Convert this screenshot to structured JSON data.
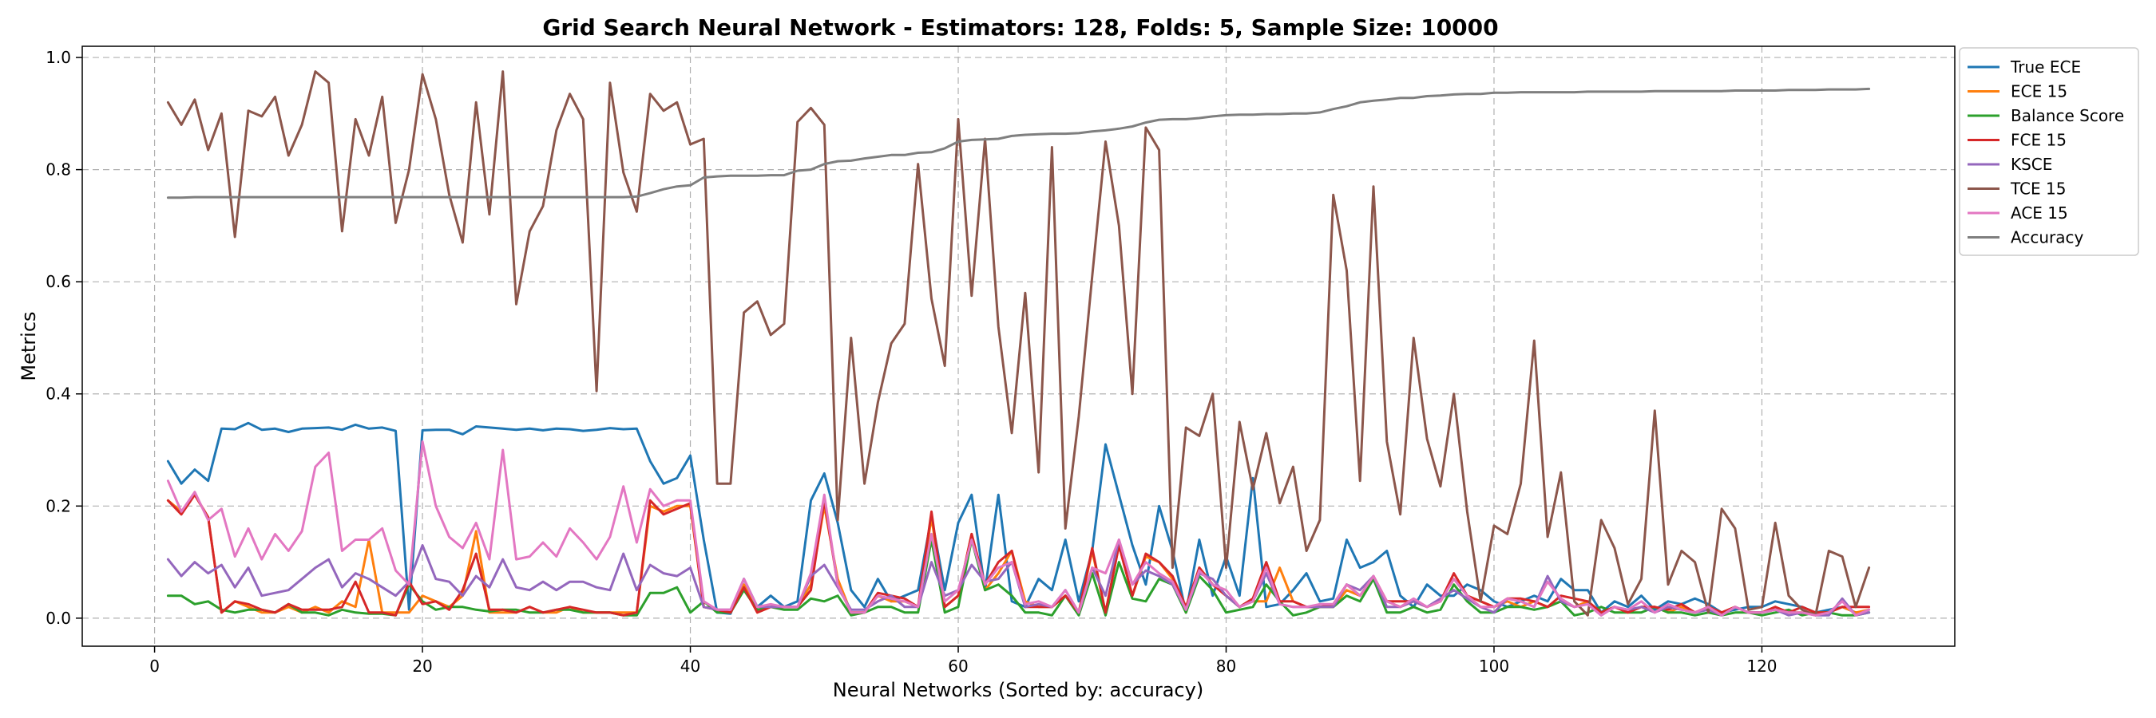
{
  "chart_data": {
    "type": "line",
    "title": "Grid Search Neural Network - Estimators: 128, Folds: 5, Sample Size: 10000",
    "xlabel": "Neural Networks (Sorted by: accuracy)",
    "ylabel": "Metrics",
    "xlim": [
      -5.4,
      134.4
    ],
    "ylim": [
      -0.05,
      1.02
    ],
    "xticks": [
      0,
      20,
      40,
      60,
      80,
      100,
      120
    ],
    "yticks": [
      0.0,
      0.2,
      0.4,
      0.6,
      0.8,
      1.0
    ],
    "grid": true,
    "legend_position": "outside-top-right",
    "x": [
      1,
      2,
      3,
      4,
      5,
      6,
      7,
      8,
      9,
      10,
      11,
      12,
      13,
      14,
      15,
      16,
      17,
      18,
      19,
      20,
      21,
      22,
      23,
      24,
      25,
      26,
      27,
      28,
      29,
      30,
      31,
      32,
      33,
      34,
      35,
      36,
      37,
      38,
      39,
      40,
      41,
      42,
      43,
      44,
      45,
      46,
      47,
      48,
      49,
      50,
      51,
      52,
      53,
      54,
      55,
      56,
      57,
      58,
      59,
      60,
      61,
      62,
      63,
      64,
      65,
      66,
      67,
      68,
      69,
      70,
      71,
      72,
      73,
      74,
      75,
      76,
      77,
      78,
      79,
      80,
      81,
      82,
      83,
      84,
      85,
      86,
      87,
      88,
      89,
      90,
      91,
      92,
      93,
      94,
      95,
      96,
      97,
      98,
      99,
      100,
      101,
      102,
      103,
      104,
      105,
      106,
      107,
      108,
      109,
      110,
      111,
      112,
      113,
      114,
      115,
      116,
      117,
      118,
      119,
      120,
      121,
      122,
      123,
      124,
      125,
      126,
      127,
      128
    ],
    "series": [
      {
        "name": "True ECE",
        "color": "#1f77b4",
        "values": [
          0.28,
          0.24,
          0.265,
          0.245,
          0.338,
          0.337,
          0.348,
          0.336,
          0.338,
          0.332,
          0.338,
          0.339,
          0.34,
          0.336,
          0.345,
          0.338,
          0.34,
          0.334,
          0.015,
          0.335,
          0.336,
          0.336,
          0.328,
          0.342,
          0.34,
          0.338,
          0.336,
          0.338,
          0.335,
          0.338,
          0.337,
          0.334,
          0.336,
          0.339,
          0.337,
          0.338,
          0.28,
          0.24,
          0.25,
          0.29,
          0.14,
          0.01,
          0.008,
          0.07,
          0.02,
          0.04,
          0.02,
          0.03,
          0.21,
          0.258,
          0.17,
          0.05,
          0.02,
          0.07,
          0.03,
          0.04,
          0.05,
          0.18,
          0.05,
          0.17,
          0.22,
          0.05,
          0.22,
          0.03,
          0.02,
          0.07,
          0.05,
          0.14,
          0.03,
          0.12,
          0.31,
          0.22,
          0.13,
          0.06,
          0.2,
          0.12,
          0.01,
          0.14,
          0.04,
          0.11,
          0.04,
          0.25,
          0.02,
          0.025,
          0.05,
          0.08,
          0.03,
          0.035,
          0.14,
          0.09,
          0.1,
          0.12,
          0.04,
          0.02,
          0.06,
          0.04,
          0.04,
          0.06,
          0.05,
          0.03,
          0.02,
          0.03,
          0.04,
          0.03,
          0.07,
          0.05,
          0.05,
          0.01,
          0.03,
          0.02,
          0.04,
          0.015,
          0.03,
          0.025,
          0.035,
          0.025,
          0.01,
          0.015,
          0.02,
          0.02,
          0.03,
          0.025,
          0.02,
          0.01,
          0.015,
          0.02,
          0.01,
          0.01
        ]
      },
      {
        "name": "ECE 15",
        "color": "#ff7f0e",
        "values": [
          0.21,
          0.19,
          0.22,
          0.18,
          0.01,
          0.03,
          0.02,
          0.01,
          0.01,
          0.02,
          0.01,
          0.02,
          0.01,
          0.03,
          0.02,
          0.14,
          0.01,
          0.01,
          0.01,
          0.04,
          0.03,
          0.02,
          0.04,
          0.155,
          0.01,
          0.01,
          0.01,
          0.02,
          0.01,
          0.01,
          0.02,
          0.01,
          0.01,
          0.01,
          0.01,
          0.01,
          0.2,
          0.19,
          0.2,
          0.2,
          0.02,
          0.015,
          0.01,
          0.06,
          0.01,
          0.02,
          0.02,
          0.02,
          0.06,
          0.2,
          0.07,
          0.01,
          0.01,
          0.04,
          0.03,
          0.03,
          0.02,
          0.18,
          0.02,
          0.04,
          0.15,
          0.05,
          0.08,
          0.12,
          0.03,
          0.02,
          0.02,
          0.04,
          0.01,
          0.12,
          0.01,
          0.13,
          0.04,
          0.11,
          0.1,
          0.07,
          0.01,
          0.09,
          0.06,
          0.04,
          0.02,
          0.03,
          0.03,
          0.09,
          0.03,
          0.02,
          0.02,
          0.02,
          0.05,
          0.04,
          0.07,
          0.03,
          0.02,
          0.03,
          0.02,
          0.03,
          0.07,
          0.04,
          0.03,
          0.02,
          0.03,
          0.02,
          0.03,
          0.02,
          0.03,
          0.02,
          0.03,
          0.01,
          0.02,
          0.01,
          0.02,
          0.02,
          0.01,
          0.02,
          0.01,
          0.02,
          0.01,
          0.02,
          0.01,
          0.01,
          0.02,
          0.01,
          0.01,
          0.01,
          0.01,
          0.02,
          0.01,
          0.015
        ]
      },
      {
        "name": "Balance Score",
        "color": "#2ca02c",
        "values": [
          0.04,
          0.04,
          0.025,
          0.03,
          0.015,
          0.01,
          0.015,
          0.015,
          0.01,
          0.025,
          0.01,
          0.01,
          0.005,
          0.015,
          0.01,
          0.008,
          0.008,
          0.005,
          0.06,
          0.03,
          0.015,
          0.02,
          0.02,
          0.015,
          0.012,
          0.015,
          0.015,
          0.01,
          0.01,
          0.015,
          0.015,
          0.01,
          0.01,
          0.01,
          0.005,
          0.005,
          0.045,
          0.045,
          0.055,
          0.01,
          0.03,
          0.01,
          0.01,
          0.05,
          0.015,
          0.02,
          0.015,
          0.015,
          0.035,
          0.03,
          0.04,
          0.005,
          0.01,
          0.02,
          0.02,
          0.01,
          0.01,
          0.14,
          0.01,
          0.02,
          0.14,
          0.05,
          0.06,
          0.04,
          0.01,
          0.01,
          0.005,
          0.04,
          0.005,
          0.08,
          0.005,
          0.1,
          0.035,
          0.03,
          0.07,
          0.06,
          0.01,
          0.075,
          0.05,
          0.01,
          0.015,
          0.02,
          0.06,
          0.03,
          0.005,
          0.01,
          0.02,
          0.02,
          0.04,
          0.03,
          0.07,
          0.01,
          0.01,
          0.02,
          0.01,
          0.015,
          0.06,
          0.03,
          0.01,
          0.01,
          0.02,
          0.02,
          0.015,
          0.02,
          0.03,
          0.005,
          0.01,
          0.02,
          0.01,
          0.01,
          0.01,
          0.02,
          0.01,
          0.01,
          0.005,
          0.01,
          0.005,
          0.01,
          0.01,
          0.005,
          0.01,
          0.015,
          0.005,
          0.01,
          0.01,
          0.005,
          0.005,
          0.01
        ]
      },
      {
        "name": "FCE 15",
        "color": "#d62728",
        "values": [
          0.21,
          0.185,
          0.22,
          0.18,
          0.01,
          0.03,
          0.025,
          0.015,
          0.01,
          0.025,
          0.015,
          0.015,
          0.015,
          0.02,
          0.065,
          0.01,
          0.01,
          0.005,
          0.065,
          0.025,
          0.03,
          0.015,
          0.05,
          0.115,
          0.015,
          0.015,
          0.01,
          0.02,
          0.01,
          0.015,
          0.02,
          0.015,
          0.01,
          0.01,
          0.005,
          0.01,
          0.21,
          0.185,
          0.195,
          0.205,
          0.02,
          0.015,
          0.01,
          0.055,
          0.01,
          0.02,
          0.02,
          0.02,
          0.05,
          0.21,
          0.06,
          0.01,
          0.01,
          0.045,
          0.04,
          0.035,
          0.02,
          0.19,
          0.02,
          0.04,
          0.15,
          0.06,
          0.1,
          0.12,
          0.02,
          0.02,
          0.02,
          0.04,
          0.01,
          0.125,
          0.01,
          0.13,
          0.04,
          0.115,
          0.1,
          0.075,
          0.02,
          0.09,
          0.06,
          0.04,
          0.02,
          0.035,
          0.1,
          0.03,
          0.03,
          0.02,
          0.02,
          0.025,
          0.06,
          0.04,
          0.075,
          0.03,
          0.03,
          0.03,
          0.02,
          0.03,
          0.08,
          0.04,
          0.03,
          0.02,
          0.035,
          0.035,
          0.03,
          0.02,
          0.04,
          0.035,
          0.03,
          0.01,
          0.02,
          0.01,
          0.02,
          0.02,
          0.015,
          0.025,
          0.01,
          0.02,
          0.01,
          0.02,
          0.01,
          0.01,
          0.02,
          0.01,
          0.02,
          0.01,
          0.01,
          0.02,
          0.02,
          0.02
        ]
      },
      {
        "name": "KSCE",
        "color": "#9467bd",
        "values": [
          0.105,
          0.075,
          0.1,
          0.08,
          0.095,
          0.055,
          0.09,
          0.04,
          0.045,
          0.05,
          0.07,
          0.09,
          0.105,
          0.055,
          0.08,
          0.07,
          0.055,
          0.04,
          0.065,
          0.13,
          0.07,
          0.065,
          0.04,
          0.075,
          0.055,
          0.105,
          0.055,
          0.05,
          0.065,
          0.05,
          0.065,
          0.065,
          0.055,
          0.05,
          0.115,
          0.05,
          0.095,
          0.08,
          0.075,
          0.09,
          0.02,
          0.015,
          0.015,
          0.07,
          0.02,
          0.02,
          0.02,
          0.02,
          0.075,
          0.095,
          0.055,
          0.015,
          0.015,
          0.03,
          0.04,
          0.02,
          0.02,
          0.1,
          0.04,
          0.05,
          0.095,
          0.065,
          0.07,
          0.1,
          0.02,
          0.025,
          0.02,
          0.05,
          0.01,
          0.09,
          0.04,
          0.14,
          0.06,
          0.085,
          0.075,
          0.06,
          0.015,
          0.08,
          0.07,
          0.04,
          0.02,
          0.03,
          0.08,
          0.025,
          0.02,
          0.02,
          0.02,
          0.02,
          0.06,
          0.05,
          0.075,
          0.02,
          0.02,
          0.03,
          0.02,
          0.035,
          0.05,
          0.035,
          0.02,
          0.01,
          0.035,
          0.03,
          0.02,
          0.075,
          0.03,
          0.02,
          0.025,
          0.005,
          0.02,
          0.015,
          0.02,
          0.01,
          0.02,
          0.015,
          0.01,
          0.015,
          0.005,
          0.02,
          0.01,
          0.01,
          0.015,
          0.005,
          0.01,
          0.005,
          0.005,
          0.035,
          0.005,
          0.01
        ]
      },
      {
        "name": "TCE 15",
        "color": "#8c564b",
        "values": [
          0.92,
          0.88,
          0.925,
          0.835,
          0.9,
          0.68,
          0.905,
          0.895,
          0.93,
          0.825,
          0.88,
          0.975,
          0.955,
          0.69,
          0.89,
          0.825,
          0.93,
          0.705,
          0.8,
          0.97,
          0.89,
          0.755,
          0.67,
          0.92,
          0.72,
          0.975,
          0.56,
          0.69,
          0.735,
          0.87,
          0.935,
          0.89,
          0.405,
          0.955,
          0.795,
          0.725,
          0.935,
          0.905,
          0.92,
          0.845,
          0.855,
          0.24,
          0.24,
          0.545,
          0.565,
          0.505,
          0.525,
          0.885,
          0.91,
          0.88,
          0.175,
          0.5,
          0.24,
          0.385,
          0.49,
          0.525,
          0.81,
          0.57,
          0.45,
          0.89,
          0.575,
          0.855,
          0.52,
          0.33,
          0.58,
          0.26,
          0.84,
          0.16,
          0.36,
          0.61,
          0.85,
          0.7,
          0.4,
          0.875,
          0.835,
          0.09,
          0.34,
          0.325,
          0.4,
          0.09,
          0.35,
          0.23,
          0.33,
          0.205,
          0.27,
          0.12,
          0.175,
          0.755,
          0.62,
          0.245,
          0.77,
          0.315,
          0.185,
          0.5,
          0.32,
          0.235,
          0.4,
          0.19,
          0.03,
          0.165,
          0.15,
          0.24,
          0.495,
          0.145,
          0.26,
          0.03,
          0.005,
          0.175,
          0.125,
          0.025,
          0.07,
          0.37,
          0.06,
          0.12,
          0.1,
          0.01,
          0.195,
          0.16,
          0.015,
          0.02,
          0.17,
          0.04,
          0.015,
          0.005,
          0.12,
          0.11,
          0.02,
          0.09
        ]
      },
      {
        "name": "ACE 15",
        "color": "#e377c2",
        "values": [
          0.245,
          0.19,
          0.225,
          0.175,
          0.195,
          0.11,
          0.16,
          0.105,
          0.15,
          0.12,
          0.155,
          0.27,
          0.295,
          0.12,
          0.14,
          0.14,
          0.16,
          0.085,
          0.06,
          0.315,
          0.2,
          0.145,
          0.125,
          0.17,
          0.105,
          0.3,
          0.105,
          0.11,
          0.135,
          0.11,
          0.16,
          0.135,
          0.105,
          0.145,
          0.235,
          0.135,
          0.23,
          0.2,
          0.21,
          0.21,
          0.03,
          0.015,
          0.015,
          0.07,
          0.02,
          0.025,
          0.02,
          0.02,
          0.08,
          0.22,
          0.06,
          0.01,
          0.01,
          0.04,
          0.035,
          0.03,
          0.02,
          0.15,
          0.03,
          0.05,
          0.14,
          0.06,
          0.09,
          0.1,
          0.025,
          0.03,
          0.02,
          0.05,
          0.01,
          0.09,
          0.08,
          0.14,
          0.06,
          0.1,
          0.08,
          0.065,
          0.015,
          0.085,
          0.06,
          0.05,
          0.02,
          0.03,
          0.09,
          0.025,
          0.02,
          0.02,
          0.025,
          0.025,
          0.06,
          0.04,
          0.075,
          0.03,
          0.02,
          0.035,
          0.02,
          0.03,
          0.07,
          0.04,
          0.02,
          0.02,
          0.035,
          0.03,
          0.02,
          0.065,
          0.035,
          0.02,
          0.025,
          0.005,
          0.02,
          0.015,
          0.03,
          0.01,
          0.025,
          0.015,
          0.01,
          0.02,
          0.005,
          0.02,
          0.01,
          0.01,
          0.015,
          0.01,
          0.01,
          0.005,
          0.01,
          0.03,
          0.005,
          0.015
        ]
      },
      {
        "name": "Accuracy",
        "color": "#7f7f7f",
        "values": [
          0.75,
          0.75,
          0.751,
          0.751,
          0.751,
          0.751,
          0.751,
          0.751,
          0.751,
          0.751,
          0.751,
          0.751,
          0.751,
          0.751,
          0.751,
          0.751,
          0.751,
          0.751,
          0.751,
          0.751,
          0.751,
          0.751,
          0.751,
          0.751,
          0.751,
          0.751,
          0.751,
          0.751,
          0.751,
          0.751,
          0.751,
          0.751,
          0.751,
          0.751,
          0.751,
          0.752,
          0.758,
          0.765,
          0.77,
          0.772,
          0.786,
          0.788,
          0.789,
          0.789,
          0.789,
          0.79,
          0.79,
          0.798,
          0.8,
          0.81,
          0.815,
          0.816,
          0.82,
          0.823,
          0.826,
          0.826,
          0.83,
          0.831,
          0.838,
          0.85,
          0.853,
          0.854,
          0.855,
          0.86,
          0.862,
          0.863,
          0.864,
          0.864,
          0.865,
          0.868,
          0.87,
          0.873,
          0.877,
          0.884,
          0.889,
          0.89,
          0.89,
          0.892,
          0.895,
          0.897,
          0.898,
          0.898,
          0.899,
          0.899,
          0.9,
          0.9,
          0.902,
          0.908,
          0.913,
          0.92,
          0.923,
          0.925,
          0.928,
          0.928,
          0.931,
          0.932,
          0.934,
          0.935,
          0.935,
          0.937,
          0.937,
          0.938,
          0.938,
          0.938,
          0.938,
          0.938,
          0.939,
          0.939,
          0.939,
          0.939,
          0.939,
          0.94,
          0.94,
          0.94,
          0.94,
          0.94,
          0.94,
          0.941,
          0.941,
          0.941,
          0.941,
          0.942,
          0.942,
          0.942,
          0.943,
          0.943,
          0.943,
          0.944
        ]
      }
    ]
  }
}
